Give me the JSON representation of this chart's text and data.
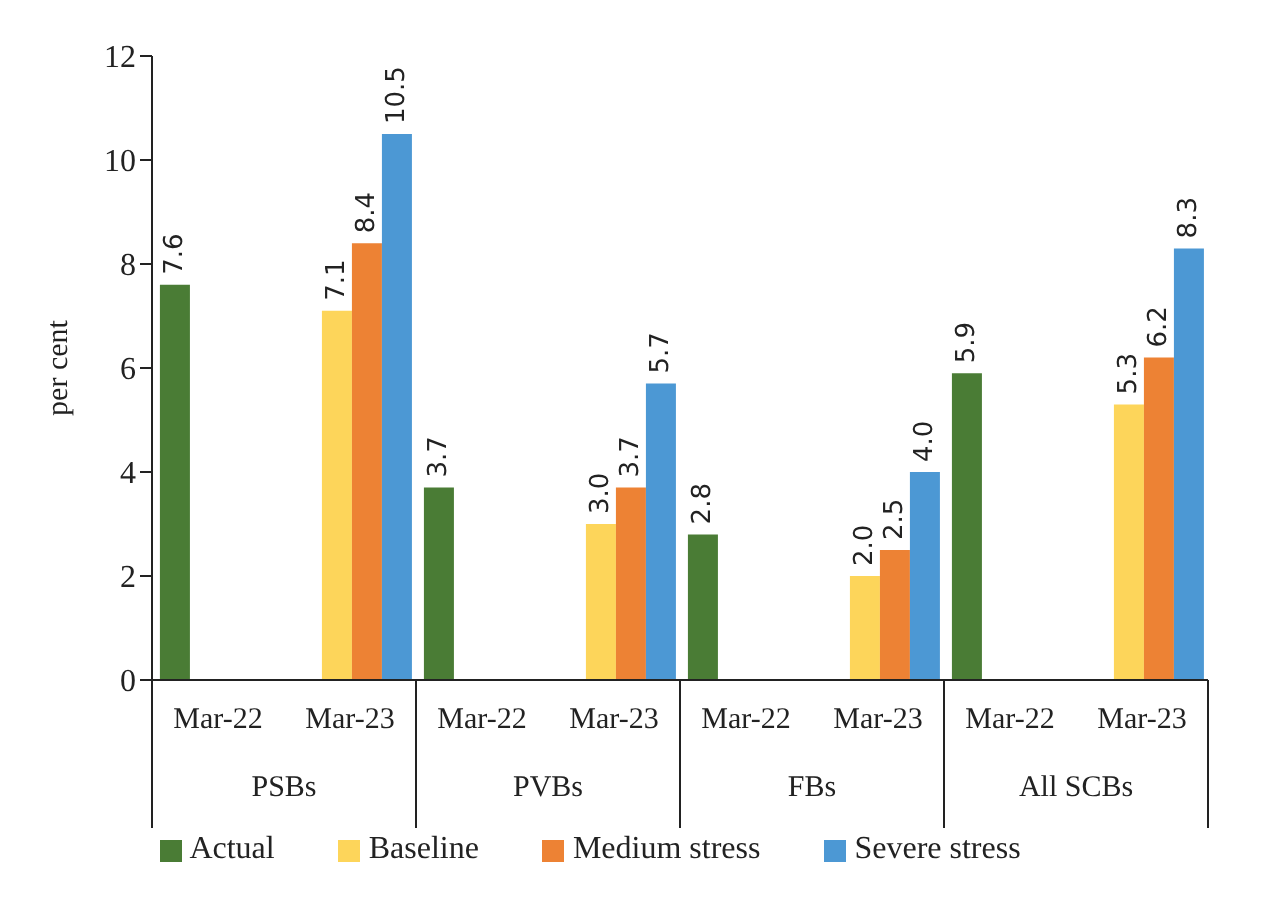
{
  "chart_data": {
    "type": "bar",
    "ylabel": "per cent",
    "categories": [
      "Mar-22",
      "Mar-23",
      "Mar-22",
      "Mar-23",
      "Mar-22",
      "Mar-23",
      "Mar-22",
      "Mar-23"
    ],
    "annotations": [
      "PSBs",
      "PVBs",
      "FBs",
      "All SCBs"
    ],
    "series": [
      {
        "name": "Actual",
        "color": "#4a7c35",
        "values": [
          7.6,
          null,
          3.7,
          null,
          2.8,
          null,
          5.9,
          null
        ],
        "value_labels": [
          "7.6",
          null,
          "3.7",
          null,
          "2.8",
          null,
          "5.9",
          null
        ]
      },
      {
        "name": "Baseline",
        "color": "#fdd55a",
        "values": [
          null,
          7.1,
          null,
          3.0,
          null,
          2.0,
          null,
          5.3
        ],
        "value_labels": [
          null,
          "7.1",
          null,
          "3.0",
          null,
          "2.0",
          null,
          "5.3"
        ]
      },
      {
        "name": "Medium stress",
        "color": "#ed8234",
        "values": [
          null,
          8.4,
          null,
          3.7,
          null,
          2.5,
          null,
          6.2
        ],
        "value_labels": [
          null,
          "8.4",
          null,
          "3.7",
          null,
          "2.5",
          null,
          "6.2"
        ]
      },
      {
        "name": "Severe stress",
        "color": "#4c98d4",
        "values": [
          null,
          10.5,
          null,
          5.7,
          null,
          4.0,
          null,
          8.3
        ],
        "value_labels": [
          null,
          "10.5",
          null,
          "5.7",
          null,
          "4.0",
          null,
          "8.3"
        ]
      }
    ],
    "ylim": [
      0,
      12
    ],
    "yticks": [
      0,
      2,
      4,
      6,
      8,
      10,
      12
    ],
    "grid": false,
    "legend": "bottom"
  }
}
